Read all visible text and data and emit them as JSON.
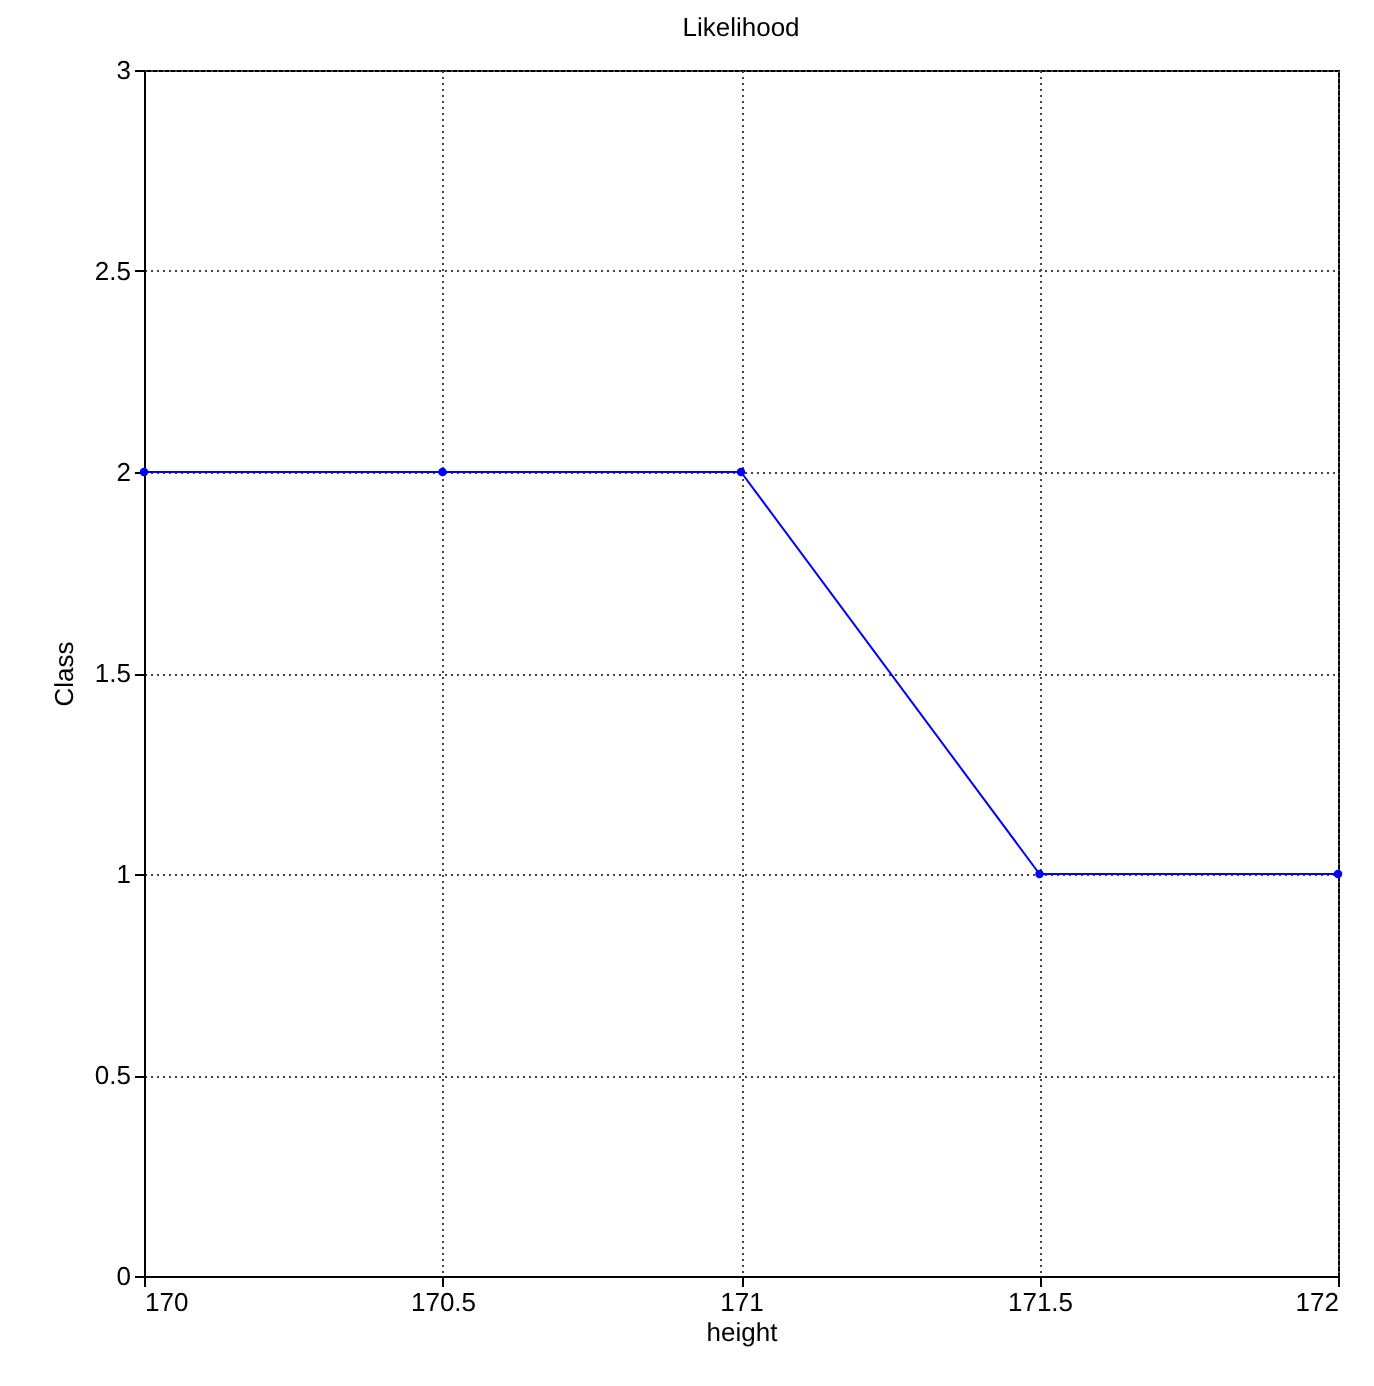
{
  "chart_data": {
    "type": "line",
    "title": "Likelihood",
    "xlabel": "height",
    "ylabel": "Class",
    "x": [
      170,
      170.5,
      171,
      171.5,
      172
    ],
    "series": [
      {
        "color": "#0000ff",
        "values": [
          2,
          2,
          2,
          1,
          1
        ]
      }
    ],
    "xlim": [
      170,
      172
    ],
    "xticks": [
      170,
      170.5,
      171,
      171.5,
      172
    ],
    "ylim": [
      0,
      3
    ],
    "yticks": [
      0,
      0.5,
      1,
      1.5,
      2,
      2.5,
      3
    ],
    "grid": true,
    "marker": "circle",
    "line_style": "solid"
  }
}
